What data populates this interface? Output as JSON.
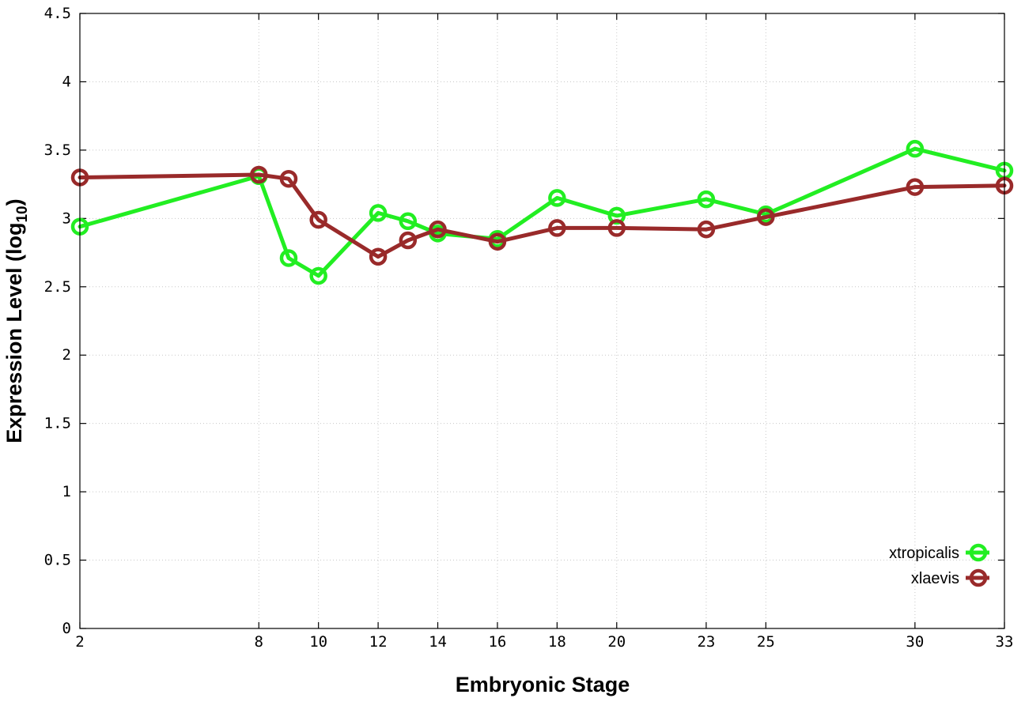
{
  "chart_data": {
    "type": "line",
    "xlabel": "Embryonic Stage",
    "ylabel": "Expression Level (log",
    "ylabel_sub": "10",
    "ylabel_suffix": ")",
    "xlim": [
      2,
      33
    ],
    "ylim": [
      0,
      4.5
    ],
    "x_ticks": [
      2,
      8,
      10,
      12,
      14,
      16,
      18,
      20,
      23,
      25,
      30,
      33
    ],
    "y_ticks": [
      {
        "v": 0,
        "label": "0"
      },
      {
        "v": 0.5,
        "label": "0.5"
      },
      {
        "v": 1,
        "label": "1"
      },
      {
        "v": 1.5,
        "label": "1.5"
      },
      {
        "v": 2,
        "label": "2"
      },
      {
        "v": 2.5,
        "label": "2.5"
      },
      {
        "v": 3,
        "label": "3"
      },
      {
        "v": 3.5,
        "label": "3.5"
      },
      {
        "v": 4,
        "label": "4"
      },
      {
        "v": 4.5,
        "label": "4.5"
      }
    ],
    "grid": true,
    "legend_position": "bottom-right",
    "series": [
      {
        "name": "xtropicalis",
        "color": "#22ee22",
        "x": [
          2,
          8,
          9,
          10,
          12,
          13,
          14,
          16,
          18,
          20,
          23,
          25,
          30,
          33
        ],
        "y": [
          2.94,
          3.31,
          2.71,
          2.58,
          3.04,
          2.98,
          2.89,
          2.85,
          3.15,
          3.02,
          3.14,
          3.03,
          3.51,
          3.35
        ]
      },
      {
        "name": "xlaevis",
        "color": "#992a2a",
        "x": [
          2,
          8,
          9,
          10,
          12,
          13,
          14,
          16,
          18,
          20,
          23,
          25,
          30,
          33
        ],
        "y": [
          3.3,
          3.32,
          3.29,
          2.99,
          2.72,
          2.84,
          2.92,
          2.83,
          2.93,
          2.93,
          2.92,
          3.01,
          3.23,
          3.24
        ]
      }
    ]
  }
}
